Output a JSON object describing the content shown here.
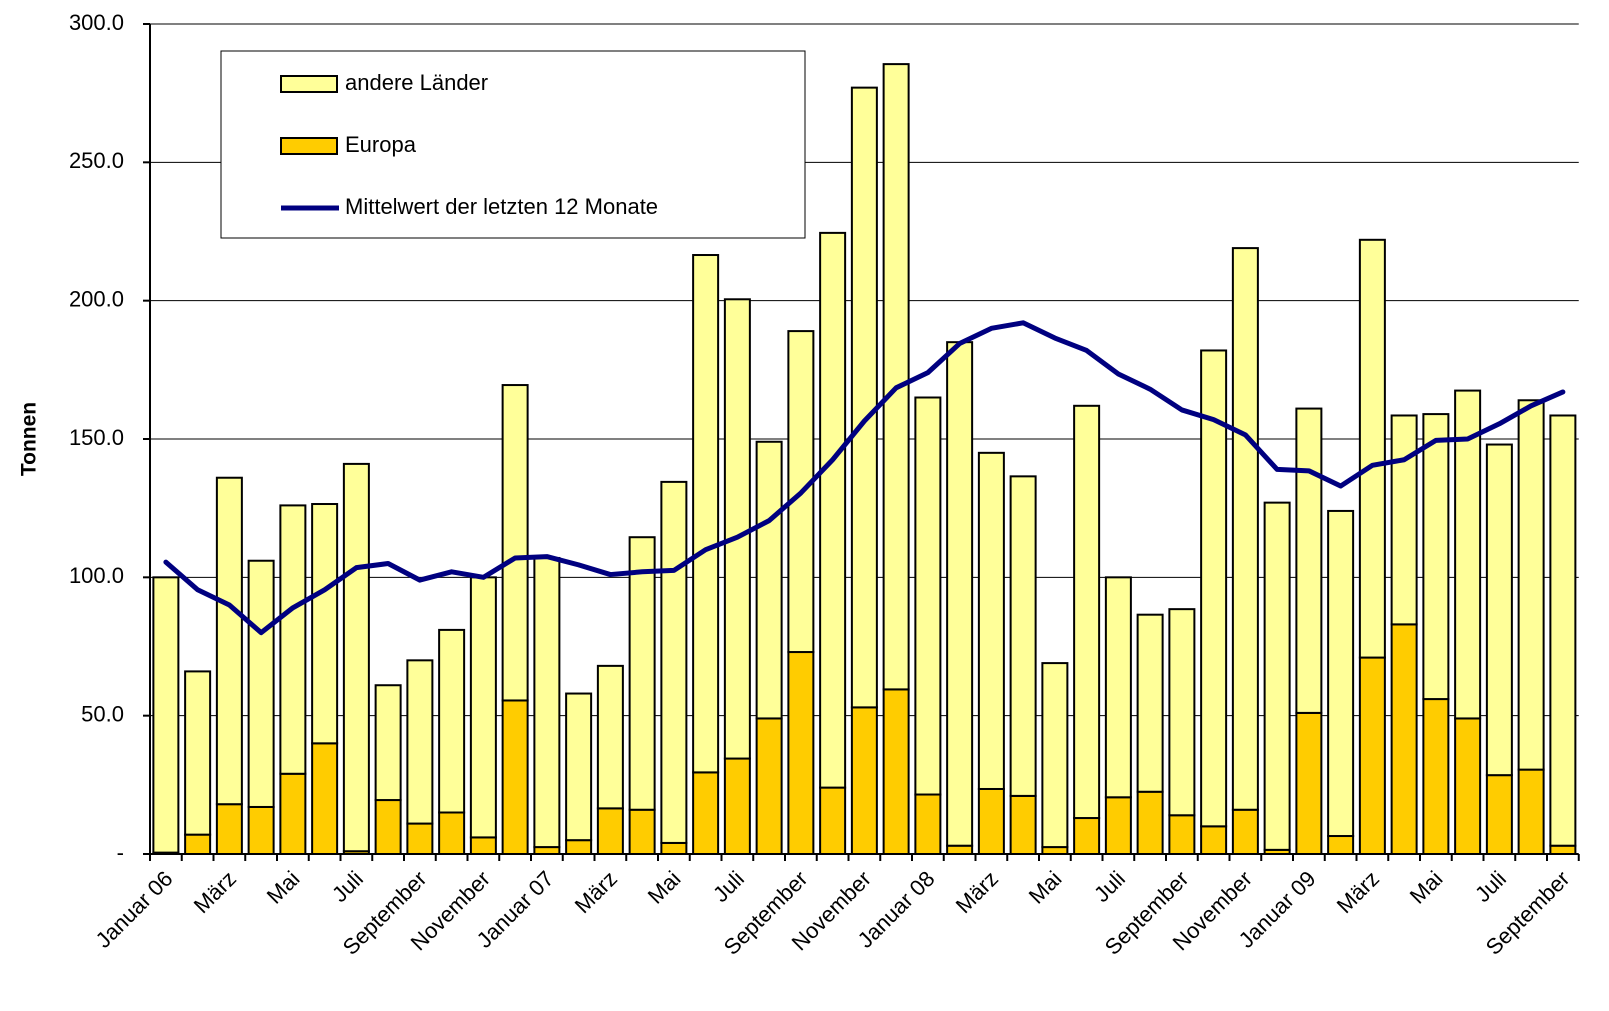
{
  "chart_data": {
    "type": "bar",
    "stacked": true,
    "y_label": "Tonnen",
    "categories": [
      "Januar 06",
      null,
      "März",
      null,
      "Mai",
      null,
      "Juli",
      null,
      "September",
      null,
      "November",
      null,
      "Januar 07",
      null,
      "März",
      null,
      "Mai",
      null,
      "Juli",
      null,
      "September",
      null,
      "November",
      null,
      "Januar 08",
      null,
      "März",
      null,
      "Mai",
      null,
      "Juli",
      null,
      "September",
      null,
      "November",
      null,
      "Januar 09",
      null,
      "März",
      null,
      "Mai",
      null,
      "Juli",
      null,
      "September"
    ],
    "series": [
      {
        "name": "andere Länder",
        "type": "bar",
        "color": "#ffff99",
        "values": [
          99.5,
          59,
          118,
          89,
          97,
          86.5,
          140,
          41.5,
          59,
          66,
          94,
          114,
          104.5,
          53,
          51.5,
          98.5,
          130.5,
          187,
          166,
          100,
          116,
          200.5,
          224,
          226,
          143.5,
          182,
          121.5,
          115.5,
          66.5,
          149,
          79.5,
          64,
          74.5,
          172,
          203,
          125.5,
          110,
          117.5,
          151,
          75.5,
          103,
          118.5,
          119.5,
          133.5,
          155.5
        ]
      },
      {
        "name": "Europa",
        "type": "bar",
        "color": "#ffcc00",
        "values": [
          0.5,
          7,
          18,
          17,
          29,
          40,
          1,
          19.5,
          11,
          15,
          6,
          55.5,
          2.5,
          5,
          16.5,
          16,
          4,
          29.5,
          34.5,
          49,
          73,
          24,
          53,
          59.5,
          21.5,
          3,
          23.5,
          21,
          2.5,
          13,
          20.5,
          22.5,
          14,
          10,
          16,
          1.5,
          51,
          6.5,
          71,
          83,
          56,
          49,
          28.5,
          30.5,
          3
        ]
      },
      {
        "name": "Mittelwert der letzten 12 Monate",
        "type": "line",
        "color": "#000080",
        "values": [
          105.5,
          95.5,
          90,
          80,
          89,
          95.5,
          103.5,
          105,
          99,
          102,
          100,
          107,
          107.5,
          104.5,
          101,
          102,
          102.5,
          110,
          114.5,
          120.5,
          130.5,
          142.5,
          156.5,
          168.5,
          174,
          184.5,
          190,
          192,
          186.5,
          182,
          173.5,
          168,
          160.5,
          157,
          151.5,
          139,
          138.5,
          133,
          140.5,
          142.5,
          149.5,
          150,
          155.5,
          162,
          167
        ]
      }
    ],
    "ylim": [
      0,
      300
    ],
    "yticks": [
      {
        "value": 0,
        "label": "-"
      },
      {
        "value": 50,
        "label": "50.0"
      },
      {
        "value": 100,
        "label": "100.0"
      },
      {
        "value": 150,
        "label": "150.0"
      },
      {
        "value": 200,
        "label": "200.0"
      },
      {
        "value": 250,
        "label": "250.0"
      },
      {
        "value": 300,
        "label": "300.0"
      }
    ],
    "grid": true,
    "legend": "top-left"
  }
}
